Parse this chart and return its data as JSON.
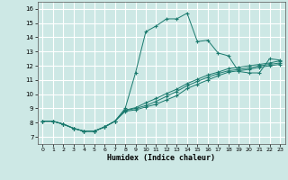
{
  "title": "",
  "xlabel": "Humidex (Indice chaleur)",
  "ylabel": "",
  "xlim": [
    -0.5,
    23.5
  ],
  "ylim": [
    6.5,
    16.5
  ],
  "xticks": [
    0,
    1,
    2,
    3,
    4,
    5,
    6,
    7,
    8,
    9,
    10,
    11,
    12,
    13,
    14,
    15,
    16,
    17,
    18,
    19,
    20,
    21,
    22,
    23
  ],
  "yticks": [
    7,
    8,
    9,
    10,
    11,
    12,
    13,
    14,
    15,
    16
  ],
  "background_color": "#cde8e5",
  "grid_color": "#ffffff",
  "line_color": "#1a7a6e",
  "lines": [
    {
      "x": [
        0,
        1,
        2,
        3,
        4,
        5,
        6,
        7,
        8,
        9,
        10,
        11,
        12,
        13,
        14,
        15,
        16,
        17,
        18,
        19,
        20,
        21,
        22,
        23
      ],
      "y": [
        8.1,
        8.1,
        7.9,
        7.6,
        7.4,
        7.4,
        7.7,
        8.1,
        9.0,
        11.5,
        14.4,
        14.8,
        15.3,
        15.3,
        15.7,
        13.7,
        13.8,
        12.9,
        12.7,
        11.6,
        11.5,
        11.5,
        12.5,
        12.4
      ]
    },
    {
      "x": [
        0,
        1,
        2,
        3,
        4,
        5,
        6,
        7,
        8,
        9,
        10,
        11,
        12,
        13,
        14,
        15,
        16,
        17,
        18,
        19,
        20,
        21,
        22,
        23
      ],
      "y": [
        8.1,
        8.1,
        7.9,
        7.6,
        7.4,
        7.4,
        7.7,
        8.1,
        8.85,
        9.0,
        9.2,
        9.5,
        9.85,
        10.2,
        10.6,
        10.9,
        11.2,
        11.45,
        11.65,
        11.75,
        11.85,
        12.0,
        12.1,
        12.2
      ]
    },
    {
      "x": [
        0,
        1,
        2,
        3,
        4,
        5,
        6,
        7,
        8,
        9,
        10,
        11,
        12,
        13,
        14,
        15,
        16,
        17,
        18,
        19,
        20,
        21,
        22,
        23
      ],
      "y": [
        8.1,
        8.1,
        7.9,
        7.6,
        7.4,
        7.4,
        7.7,
        8.1,
        8.9,
        9.05,
        9.4,
        9.7,
        10.05,
        10.35,
        10.75,
        11.05,
        11.35,
        11.55,
        11.8,
        11.9,
        12.0,
        12.1,
        12.2,
        12.35
      ]
    },
    {
      "x": [
        0,
        1,
        2,
        3,
        4,
        5,
        6,
        7,
        8,
        9,
        10,
        11,
        12,
        13,
        14,
        15,
        16,
        17,
        18,
        19,
        20,
        21,
        22,
        23
      ],
      "y": [
        8.1,
        8.1,
        7.9,
        7.6,
        7.4,
        7.4,
        7.7,
        8.1,
        8.8,
        8.9,
        9.1,
        9.3,
        9.6,
        9.9,
        10.4,
        10.7,
        11.0,
        11.3,
        11.55,
        11.65,
        11.75,
        11.9,
        12.0,
        12.1
      ]
    }
  ]
}
